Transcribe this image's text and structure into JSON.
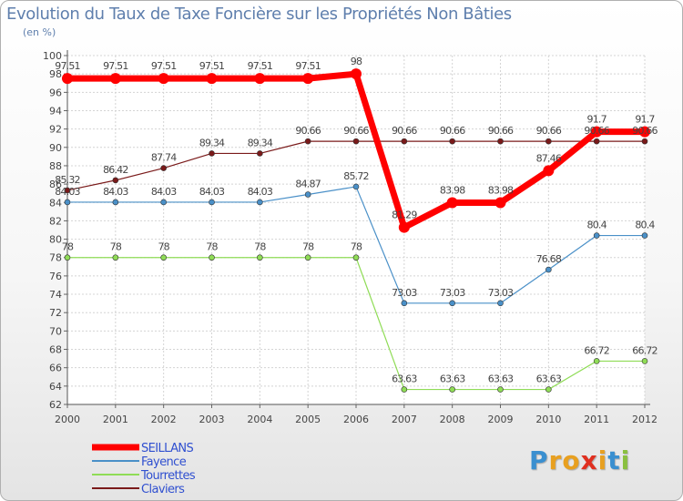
{
  "chart_data": {
    "type": "line",
    "title": "Evolution du Taux de Taxe Foncière sur les Propriétés Non Bâties",
    "subtitle": "(en %)",
    "xlabel": "",
    "ylabel": "(en %)",
    "ylim": [
      62,
      100
    ],
    "yticks": [
      62,
      64,
      66,
      68,
      70,
      72,
      74,
      76,
      78,
      80,
      82,
      84,
      86,
      88,
      90,
      92,
      94,
      96,
      98,
      100
    ],
    "categories": [
      "2000",
      "2001",
      "2002",
      "2003",
      "2004",
      "2005",
      "2006",
      "2007",
      "2008",
      "2009",
      "2010",
      "2011",
      "2012"
    ],
    "legend_position": "bottom-left",
    "grid": true,
    "series": [
      {
        "name": "SEILLANS",
        "color": "#ff0000",
        "values": [
          97.51,
          97.51,
          97.51,
          97.51,
          97.51,
          97.51,
          98,
          81.29,
          83.98,
          83.98,
          87.46,
          91.7,
          91.7
        ],
        "labels": [
          "97.51",
          "97.51",
          "97.51",
          "97.51",
          "97.51",
          "97.51",
          "98",
          "81.29",
          "83.98",
          "83.98",
          "87.46",
          "91.7",
          "91.7"
        ]
      },
      {
        "name": "Fayence",
        "color": "#4a90c8",
        "values": [
          84.03,
          84.03,
          84.03,
          84.03,
          84.03,
          84.87,
          85.72,
          73.03,
          73.03,
          73.03,
          76.68,
          80.4,
          80.4
        ],
        "labels": [
          "84.03",
          "84.03",
          "84.03",
          "84.03",
          "84.03",
          "84.87",
          "85.72",
          "73.03",
          "73.03",
          "73.03",
          "76.68",
          "80.4",
          "80.4"
        ]
      },
      {
        "name": "Tourrettes",
        "color": "#8fdc56",
        "values": [
          78,
          78,
          78,
          78,
          78,
          78,
          78,
          63.63,
          63.63,
          63.63,
          63.63,
          66.72,
          66.72
        ],
        "labels": [
          "78",
          "78",
          "78",
          "78",
          "78",
          "78",
          "78",
          "63.63",
          "63.63",
          "63.63",
          "63.63",
          "66.72",
          "66.72"
        ]
      },
      {
        "name": "Claviers",
        "color": "#7a1a1a",
        "values": [
          85.32,
          86.42,
          87.74,
          89.34,
          89.34,
          90.66,
          90.66,
          90.66,
          90.66,
          90.66,
          90.66,
          90.66,
          90.66
        ],
        "labels": [
          "85.32",
          "86.42",
          "87.74",
          "89.34",
          "89.34",
          "90.66",
          "90.66",
          "90.66",
          "90.66",
          "90.66",
          "90.66",
          "90.66",
          "90.66"
        ]
      }
    ]
  },
  "logo": {
    "letters": [
      "P",
      "r",
      "o",
      "x",
      "i",
      "t",
      "i"
    ],
    "colors": [
      "#3a8fd0",
      "#e8a020",
      "#e8a020",
      "#e03020",
      "#e8a020",
      "#3a8fd0",
      "#8ac040"
    ]
  }
}
